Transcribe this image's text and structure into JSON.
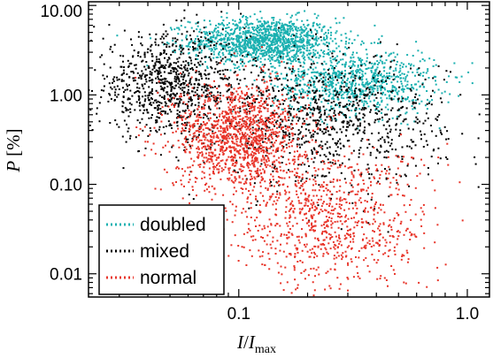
{
  "chart_data": {
    "type": "scatter",
    "title": "",
    "xlabel": "I/I_max",
    "xlabel_parts": {
      "var": "I",
      "slash": "/",
      "denom": "I",
      "sub": "max"
    },
    "ylabel": "P [%]",
    "ylabel_parts": {
      "var": "P",
      "unit": "[%]"
    },
    "x_scale": "log",
    "y_scale": "log",
    "xlim": [
      0.022,
      1.25
    ],
    "ylim": [
      0.0055,
      11.0
    ],
    "x_ticks": [
      {
        "value": 0.1,
        "label": "0.1"
      },
      {
        "value": 1.0,
        "label": "1.0"
      }
    ],
    "y_ticks": [
      {
        "value": 0.01,
        "label": "0.01"
      },
      {
        "value": 0.1,
        "label": "0.10"
      },
      {
        "value": 1.0,
        "label": "1.00"
      },
      {
        "value": 10.0,
        "label": "10.00"
      }
    ],
    "grid": false,
    "legend_position": "bottom-left",
    "series": [
      {
        "name": "doubled",
        "color": "#1ab0b0",
        "clusters": [
          {
            "x_center": 0.13,
            "x_spread_dex": 0.16,
            "y_center": 4.0,
            "y_spread_dex": 0.13,
            "count": 1300
          },
          {
            "x_center": 0.32,
            "x_spread_dex": 0.18,
            "y_center": 1.4,
            "y_spread_dex": 0.18,
            "count": 900
          }
        ]
      },
      {
        "name": "mixed",
        "color": "#000000",
        "clusters": [
          {
            "x_center": 0.05,
            "x_spread_dex": 0.17,
            "y_center": 1.3,
            "y_spread_dex": 0.28,
            "count": 900
          },
          {
            "x_center": 0.25,
            "x_spread_dex": 0.25,
            "y_center": 0.5,
            "y_spread_dex": 0.35,
            "count": 900
          }
        ]
      },
      {
        "name": "normal",
        "color": "#e8352a",
        "clusters": [
          {
            "x_center": 0.1,
            "x_spread_dex": 0.14,
            "y_center": 0.35,
            "y_spread_dex": 0.3,
            "count": 1300
          },
          {
            "x_center": 0.25,
            "x_spread_dex": 0.22,
            "y_center": 0.04,
            "y_spread_dex": 0.4,
            "count": 900
          }
        ]
      }
    ]
  }
}
